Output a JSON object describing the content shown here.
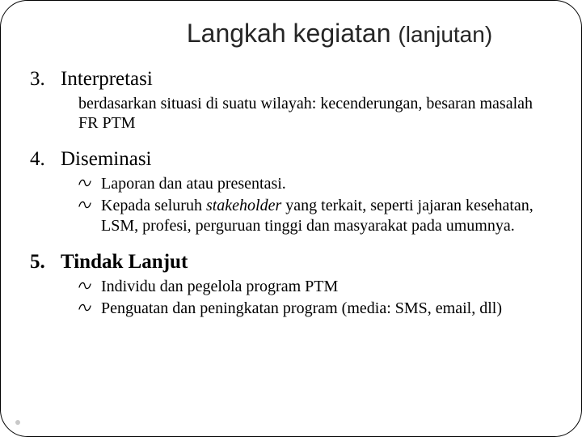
{
  "title_main": "Langkah kegiatan",
  "title_sub": "(lanjutan)",
  "sections": [
    {
      "num": "3.",
      "title": "Interpretasi",
      "desc": "berdasarkan situasi di suatu wilayah: kecenderungan, besaran masalah FR PTM"
    },
    {
      "num": "4.",
      "title": "Diseminasi",
      "bullets": [
        {
          "pre": "Laporan dan atau presentasi."
        },
        {
          "pre": "Kepada seluruh ",
          "italic": "stakeholder",
          "post": " yang terkait, seperti jajaran kesehatan, LSM, profesi, perguruan tinggi dan masyarakat pada umumnya."
        }
      ]
    },
    {
      "num": "5.",
      "title": "Tindak Lanjut",
      "bullets": [
        {
          "pre": "Individu dan pegelola program PTM"
        },
        {
          "pre": "Penguatan dan peningkatan program (media: SMS, email, dll)"
        }
      ]
    }
  ],
  "bullet_glyph": "།།",
  "colors": {
    "text": "#000000",
    "title": "#262626",
    "background": "#ffffff",
    "border": "#000000"
  }
}
